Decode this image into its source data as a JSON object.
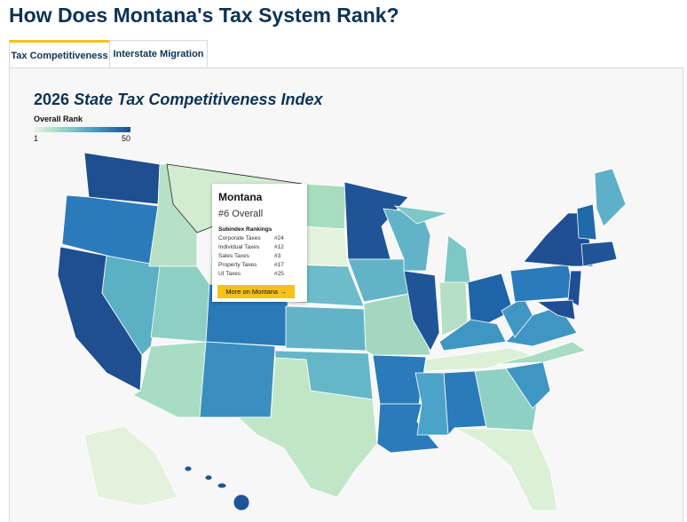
{
  "header": {
    "title": "How Does Montana's Tax System Rank?"
  },
  "tabs": [
    {
      "label": "Tax Competitiveness",
      "active": true
    },
    {
      "label": "Interstate Migration",
      "active": false
    }
  ],
  "map": {
    "title_prefix": "2026",
    "title_italic": "State Tax Competitiveness Index",
    "legend": {
      "title": "Overall Rank",
      "min": "1",
      "max": "50"
    },
    "tooltip": {
      "state": "Montana",
      "overall": "#6 Overall",
      "subindex_title": "Subindex Rankings",
      "rows": [
        [
          "Corporate Taxes",
          "#24"
        ],
        [
          "Individual Taxes",
          "#12"
        ],
        [
          "Sales Taxes",
          "#3"
        ],
        [
          "Property Taxes",
          "#17"
        ],
        [
          "UI Taxes",
          "#25"
        ]
      ],
      "button": "More on Montana →"
    }
  }
}
